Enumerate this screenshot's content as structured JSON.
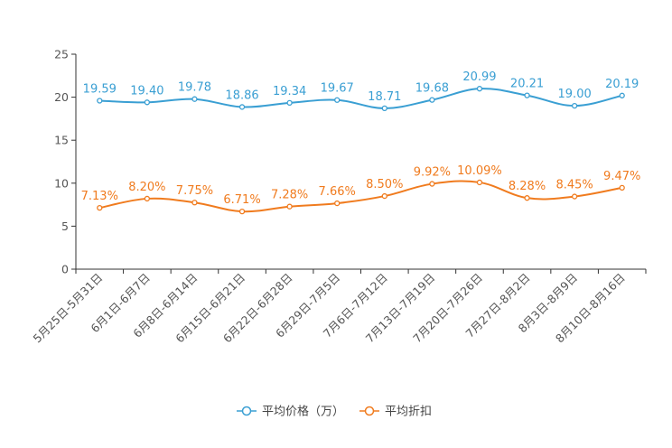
{
  "chart_data": {
    "type": "line",
    "title": "",
    "xlabel": "",
    "ylabel": "",
    "ylim": [
      0,
      25
    ],
    "yticks": [
      0,
      5,
      10,
      15,
      20,
      25
    ],
    "grid": false,
    "legend_position": "bottom-center",
    "categories": [
      "5月25日-5月31日",
      "6月1日-6月7日",
      "6月8日-6月14日",
      "6月15日-6月21日",
      "6月22日-6月28日",
      "6月29日-7月5日",
      "7月6日-7月12日",
      "7月13日-7月19日",
      "7月20日-7月26日",
      "7月27日-8月2日",
      "8月3日-8月9日",
      "8月10日-8月16日"
    ],
    "series": [
      {
        "name": "平均价格（万）",
        "color": "#3a9fd3",
        "values": [
          19.59,
          19.4,
          19.78,
          18.86,
          19.34,
          19.67,
          18.71,
          19.68,
          20.99,
          20.21,
          19.0,
          20.19
        ],
        "labels": [
          "19.59",
          "19.40",
          "19.78",
          "18.86",
          "19.34",
          "19.67",
          "18.71",
          "19.68",
          "20.99",
          "20.21",
          "19.00",
          "20.19"
        ]
      },
      {
        "name": "平均折扣",
        "color": "#f07b1e",
        "values": [
          7.13,
          8.2,
          7.75,
          6.71,
          7.28,
          7.66,
          8.5,
          9.92,
          10.09,
          8.28,
          8.45,
          9.47
        ],
        "labels": [
          "7.13%",
          "8.20%",
          "7.75%",
          "6.71%",
          "7.28%",
          "7.66%",
          "8.50%",
          "9.92%",
          "10.09%",
          "8.28%",
          "8.45%",
          "9.47%"
        ]
      }
    ]
  }
}
